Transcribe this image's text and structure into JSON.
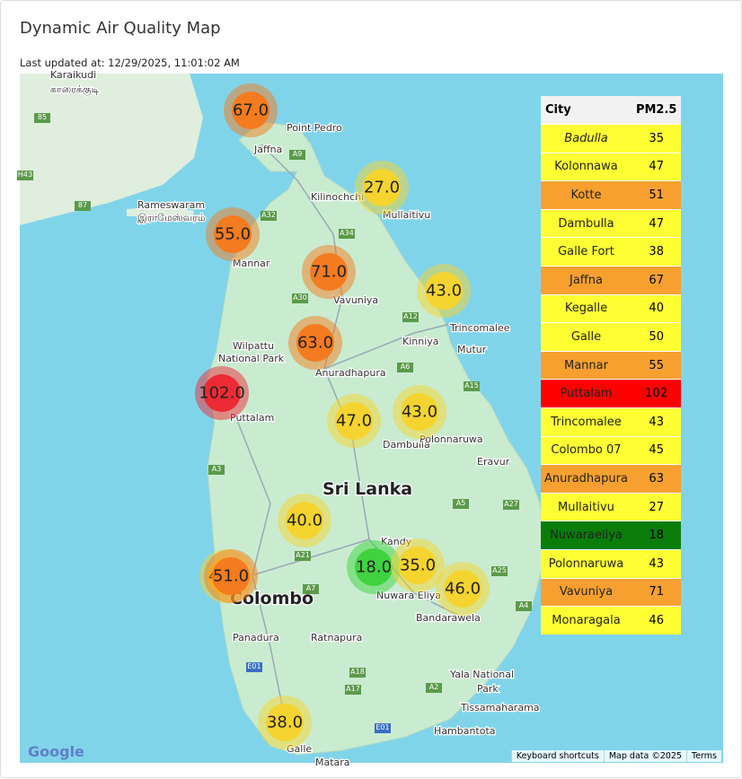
{
  "header": {
    "title": "Dynamic Air Quality Map",
    "updated": "Last updated at: 12/29/2025, 11:01:02 AM"
  },
  "map": {
    "labels": [
      "Karaikudi",
      "காரைக்குடி",
      "Point Pedro",
      "Jaffna",
      "Kilinochchi",
      "Mullaitivu",
      "Rameswaram",
      "இராமேஸ்வரம்",
      "Mannar",
      "Vavuniya",
      "Trincomalee",
      "Kinniya",
      "Mutur",
      "Wilpattu",
      "National Park",
      "Anuradhapura",
      "Puttalam",
      "Dambulla",
      "Polonnaruwa",
      "Eravur",
      "Sri Lanka",
      "Kandy",
      "Nuwara Eliya",
      "Bandarawela",
      "Colombo",
      "Panadura",
      "Ratnapura",
      "Yala National",
      "Park",
      "Tissamaharama",
      "Hambantota",
      "Galle",
      "Matara",
      "A9",
      "A32",
      "A34",
      "A30",
      "A12",
      "A6",
      "A15",
      "A5",
      "A27",
      "A21",
      "A7",
      "A25",
      "A4",
      "A18",
      "A17",
      "A2",
      "E01",
      "E01",
      "A3",
      "85",
      "H43",
      "87"
    ],
    "markers": [
      {
        "label": "67.0",
        "color": "#f47b20"
      },
      {
        "label": "27.0",
        "color": "#f5d430"
      },
      {
        "label": "55.0",
        "color": "#f47b20"
      },
      {
        "label": "71.0",
        "color": "#f47b20"
      },
      {
        "label": "43.0",
        "color": "#f5d430"
      },
      {
        "label": "63.0",
        "color": "#f47b20"
      },
      {
        "label": "102.0",
        "color": "#ee2a35"
      },
      {
        "label": "47.0",
        "color": "#f5d430"
      },
      {
        "label": "43.0",
        "color": "#f5d430"
      },
      {
        "label": "40.0",
        "color": "#f5d430"
      },
      {
        "label": "45.0",
        "color": "#f5d430"
      },
      {
        "label": "51.0",
        "color": "#f47b20"
      },
      {
        "label": "18.0",
        "color": "#3fd33f"
      },
      {
        "label": "35.0",
        "color": "#f5d430"
      },
      {
        "label": "46.0",
        "color": "#f5d430"
      },
      {
        "label": "38.0",
        "color": "#f5d430"
      }
    ],
    "footer": {
      "logo": "Google",
      "shortcuts": "Keyboard shortcuts",
      "data": "Map data ©2025",
      "terms": "Terms"
    }
  },
  "table": {
    "headers": [
      "City",
      "PM2.5"
    ],
    "rows": [
      {
        "city": "Badulla",
        "pm25": 35,
        "color": "#ffff33"
      },
      {
        "city": "Kolonnawa",
        "pm25": 47,
        "color": "#ffff33"
      },
      {
        "city": "Kotte",
        "pm25": 51,
        "color": "#f7a030"
      },
      {
        "city": "Dambulla",
        "pm25": 47,
        "color": "#ffff33"
      },
      {
        "city": "Galle Fort",
        "pm25": 38,
        "color": "#ffff33"
      },
      {
        "city": "Jaffna",
        "pm25": 67,
        "color": "#f7a030"
      },
      {
        "city": "Kegalle",
        "pm25": 40,
        "color": "#ffff33"
      },
      {
        "city": "Galle",
        "pm25": 50,
        "color": "#ffff33"
      },
      {
        "city": "Mannar",
        "pm25": 55,
        "color": "#f7a030"
      },
      {
        "city": "Puttalam",
        "pm25": 102,
        "color": "#ff0000"
      },
      {
        "city": "Trincomalee",
        "pm25": 43,
        "color": "#ffff33"
      },
      {
        "city": "Colombo 07",
        "pm25": 45,
        "color": "#ffff33"
      },
      {
        "city": "Anuradhapura",
        "pm25": 63,
        "color": "#f7a030"
      },
      {
        "city": "Mullaitivu",
        "pm25": 27,
        "color": "#ffff33"
      },
      {
        "city": "Nuwaraeliya",
        "pm25": 18,
        "color": "#0a7d0a"
      },
      {
        "city": "Polonnaruwa",
        "pm25": 43,
        "color": "#ffff33"
      },
      {
        "city": "Vavuniya",
        "pm25": 71,
        "color": "#f7a030"
      },
      {
        "city": "Monaragala",
        "pm25": 46,
        "color": "#ffff33"
      }
    ]
  }
}
